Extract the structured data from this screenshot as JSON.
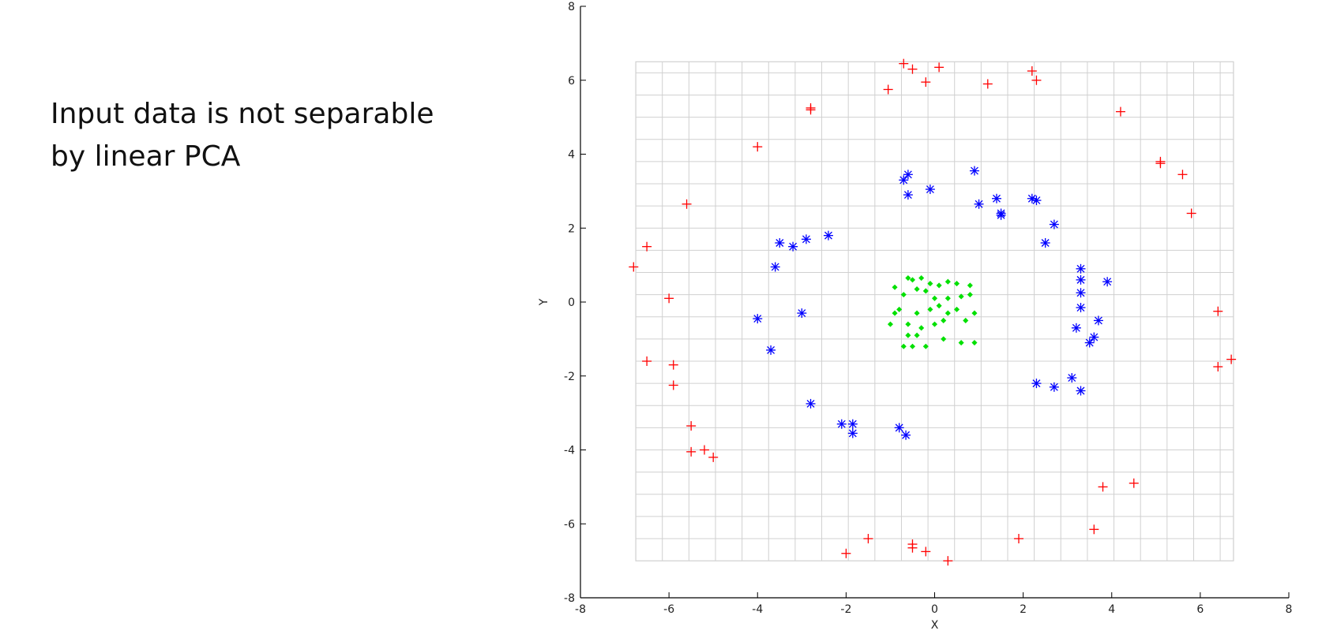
{
  "slide": {
    "text_line1": "Input data is not separable",
    "text_line2": "by linear PCA"
  },
  "chart_data": {
    "type": "scatter",
    "title": "",
    "xlabel": "X",
    "ylabel": "Y",
    "xlim": [
      -8,
      8
    ],
    "ylim": [
      -8,
      8
    ],
    "xticks": [
      -8,
      -6,
      -4,
      -2,
      0,
      2,
      4,
      6,
      8
    ],
    "yticks": [
      -8,
      -6,
      -4,
      -2,
      0,
      2,
      4,
      6,
      8
    ],
    "grid": true,
    "grid_range": {
      "x": [
        -6.75,
        6.75
      ],
      "y": [
        -7,
        6.5
      ]
    },
    "grid_step": 0.6,
    "grid_color": "#d0d0d0",
    "series": [
      {
        "marker": "dot",
        "color": "#00e000",
        "points": [
          [
            -0.6,
            0.65
          ],
          [
            -0.5,
            0.6
          ],
          [
            -0.3,
            0.65
          ],
          [
            -0.9,
            0.4
          ],
          [
            -0.7,
            0.2
          ],
          [
            -0.4,
            0.35
          ],
          [
            -0.1,
            0.5
          ],
          [
            0.1,
            0.45
          ],
          [
            0.3,
            0.55
          ],
          [
            0.5,
            0.5
          ],
          [
            0.8,
            0.45
          ],
          [
            -1.0,
            -0.6
          ],
          [
            -0.8,
            -0.2
          ],
          [
            -0.6,
            -0.6
          ],
          [
            -0.4,
            -0.3
          ],
          [
            -0.1,
            -0.2
          ],
          [
            0.1,
            -0.1
          ],
          [
            0.3,
            -0.3
          ],
          [
            0.5,
            -0.2
          ],
          [
            0.7,
            -0.5
          ],
          [
            0.9,
            -0.3
          ],
          [
            -0.7,
            -1.2
          ],
          [
            -0.4,
            -0.9
          ],
          [
            -0.2,
            -1.2
          ],
          [
            0.2,
            -1.0
          ],
          [
            0.6,
            -1.1
          ],
          [
            0.9,
            -1.1
          ],
          [
            -0.6,
            -0.9
          ],
          [
            0.0,
            0.1
          ],
          [
            0.3,
            0.1
          ],
          [
            -0.3,
            -0.7
          ],
          [
            0.0,
            -0.6
          ],
          [
            -0.9,
            -0.3
          ],
          [
            0.8,
            0.2
          ],
          [
            0.2,
            -0.5
          ],
          [
            -0.2,
            0.3
          ],
          [
            0.6,
            0.15
          ],
          [
            -0.5,
            -1.2
          ]
        ]
      },
      {
        "marker": "asterisk",
        "color": "#0000ff",
        "points": [
          [
            -0.6,
            3.45
          ],
          [
            -0.7,
            3.3
          ],
          [
            -0.6,
            2.9
          ],
          [
            -0.1,
            3.05
          ],
          [
            0.9,
            3.55
          ],
          [
            1.0,
            2.65
          ],
          [
            1.4,
            2.8
          ],
          [
            1.5,
            2.4
          ],
          [
            1.5,
            2.35
          ],
          [
            2.2,
            2.8
          ],
          [
            2.3,
            2.75
          ],
          [
            2.7,
            2.1
          ],
          [
            2.5,
            1.6
          ],
          [
            -2.4,
            1.8
          ],
          [
            -2.9,
            1.7
          ],
          [
            -3.2,
            1.5
          ],
          [
            -3.5,
            1.6
          ],
          [
            -3.6,
            0.95
          ],
          [
            3.3,
            0.9
          ],
          [
            3.3,
            0.6
          ],
          [
            3.3,
            0.25
          ],
          [
            3.3,
            -0.15
          ],
          [
            3.9,
            0.55
          ],
          [
            -3.0,
            -0.3
          ],
          [
            -4.0,
            -0.45
          ],
          [
            -3.7,
            -1.3
          ],
          [
            3.2,
            -0.7
          ],
          [
            3.7,
            -0.5
          ],
          [
            3.6,
            -0.95
          ],
          [
            3.5,
            -1.1
          ],
          [
            3.1,
            -2.05
          ],
          [
            3.3,
            -2.4
          ],
          [
            2.7,
            -2.3
          ],
          [
            2.3,
            -2.2
          ],
          [
            -2.8,
            -2.75
          ],
          [
            -2.1,
            -3.3
          ],
          [
            -1.85,
            -3.3
          ],
          [
            -1.85,
            -3.55
          ],
          [
            -0.8,
            -3.4
          ],
          [
            -0.65,
            -3.6
          ]
        ]
      },
      {
        "marker": "plus",
        "color": "#ff0000",
        "points": [
          [
            -0.7,
            6.45
          ],
          [
            -0.5,
            6.3
          ],
          [
            0.1,
            6.35
          ],
          [
            -1.05,
            5.75
          ],
          [
            -0.2,
            5.95
          ],
          [
            1.2,
            5.9
          ],
          [
            2.2,
            6.25
          ],
          [
            2.3,
            6.0
          ],
          [
            -2.8,
            5.25
          ],
          [
            -2.8,
            5.2
          ],
          [
            4.2,
            5.15
          ],
          [
            -4.0,
            4.2
          ],
          [
            5.1,
            3.8
          ],
          [
            5.1,
            3.75
          ],
          [
            5.6,
            3.45
          ],
          [
            5.8,
            2.4
          ],
          [
            -5.6,
            2.65
          ],
          [
            -6.5,
            1.5
          ],
          [
            -6.8,
            0.95
          ],
          [
            -6.0,
            0.1
          ],
          [
            6.4,
            -0.25
          ],
          [
            6.7,
            -1.55
          ],
          [
            6.4,
            -1.75
          ],
          [
            -6.5,
            -1.6
          ],
          [
            -5.9,
            -1.7
          ],
          [
            -5.9,
            -2.25
          ],
          [
            -5.5,
            -3.35
          ],
          [
            -5.5,
            -4.05
          ],
          [
            -5.2,
            -4.0
          ],
          [
            -5.0,
            -4.2
          ],
          [
            4.5,
            -4.9
          ],
          [
            3.8,
            -5.0
          ],
          [
            3.6,
            -6.15
          ],
          [
            1.9,
            -6.4
          ],
          [
            -1.5,
            -6.4
          ],
          [
            -2.0,
            -6.8
          ],
          [
            -0.5,
            -6.55
          ],
          [
            -0.5,
            -6.65
          ],
          [
            -0.2,
            -6.75
          ],
          [
            0.3,
            -7.0
          ]
        ]
      }
    ]
  }
}
